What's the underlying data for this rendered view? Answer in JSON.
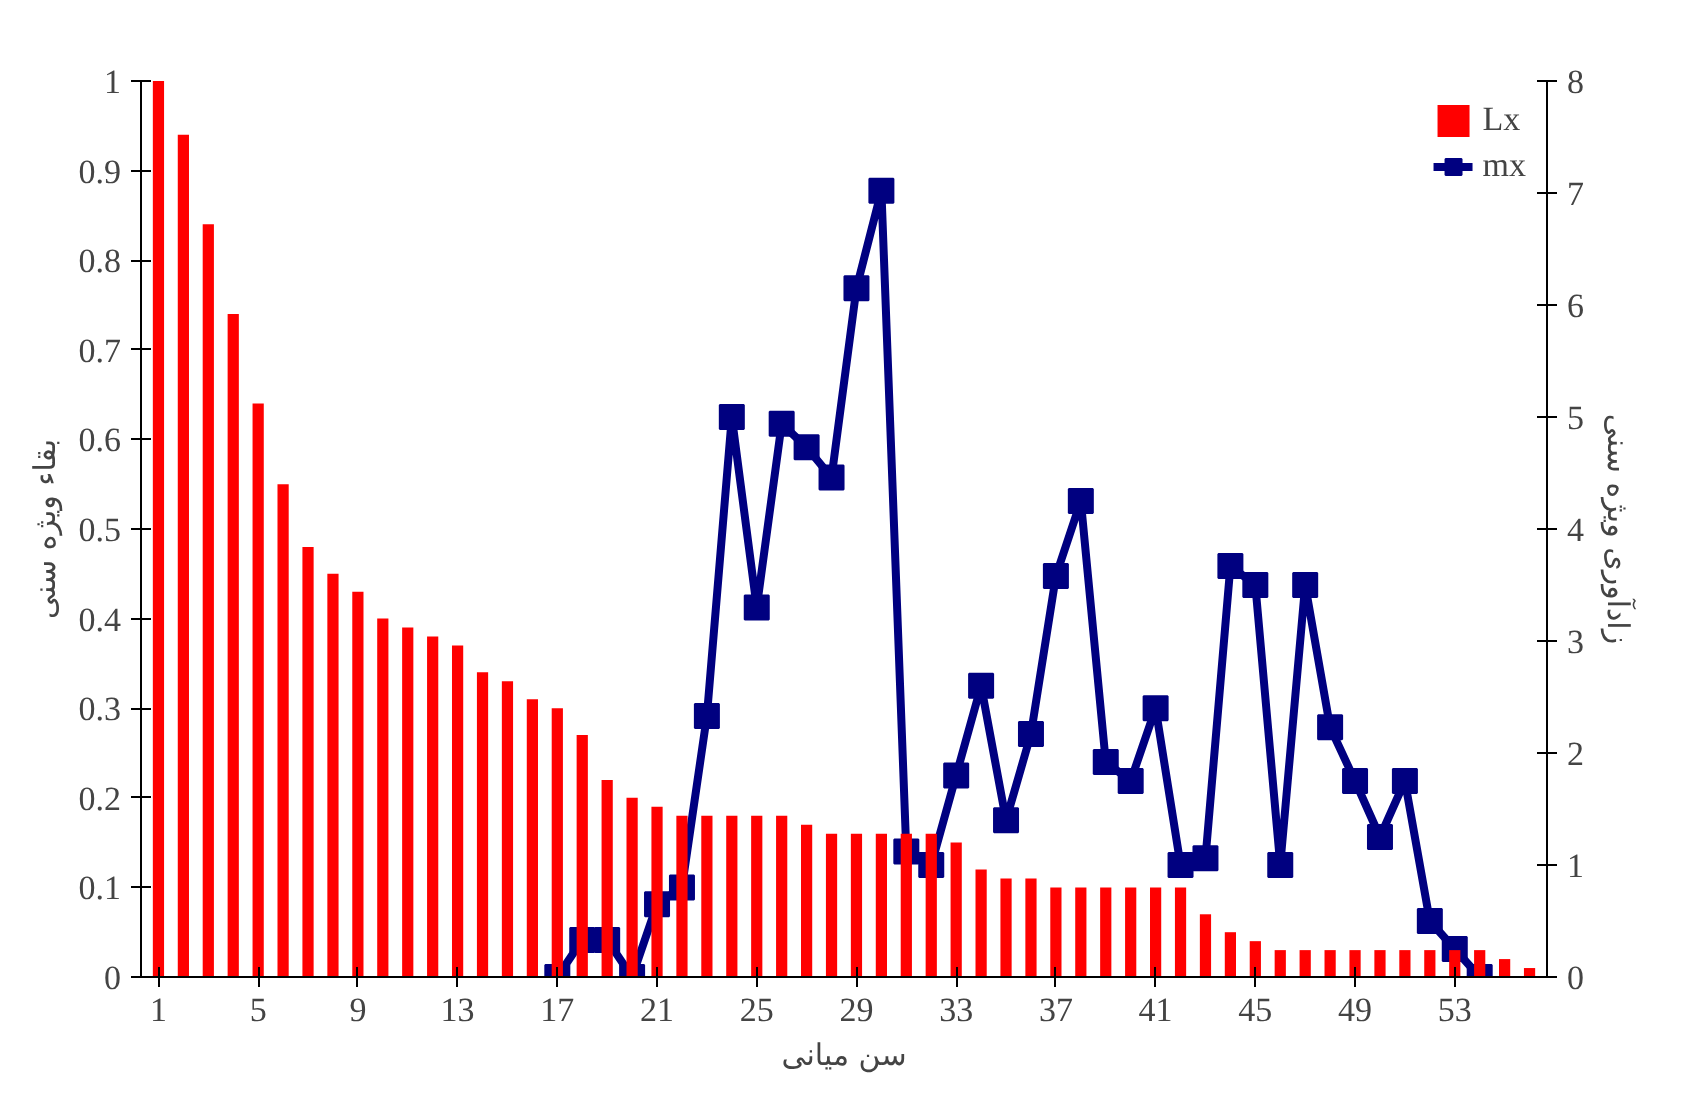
{
  "chart_data": {
    "type": "bar",
    "xlabel": "سن میانی",
    "ylabel": "بقاء ویژه سنی",
    "y2label": "زادآوری ویژه سنی",
    "categories": [
      "1",
      null,
      null,
      null,
      "5",
      null,
      null,
      null,
      "9",
      null,
      null,
      null,
      "13",
      null,
      null,
      null,
      "17",
      null,
      null,
      null,
      "21",
      null,
      null,
      null,
      "25",
      null,
      null,
      null,
      "29",
      null,
      null,
      null,
      "33",
      null,
      null,
      null,
      "37",
      null,
      null,
      null,
      "41",
      null,
      null,
      null,
      "45",
      null,
      null,
      null,
      "49",
      null,
      null,
      null,
      "53",
      null,
      null,
      null
    ],
    "series": [
      {
        "name": "Lx",
        "color": "#ff0000",
        "values": [
          1.0,
          0.94,
          0.84,
          0.74,
          0.64,
          0.55,
          0.48,
          0.45,
          0.43,
          0.4,
          0.39,
          0.38,
          0.37,
          0.34,
          0.33,
          0.31,
          0.3,
          0.27,
          0.22,
          0.2,
          0.19,
          0.18,
          0.18,
          0.18,
          0.18,
          0.18,
          0.17,
          0.16,
          0.16,
          0.16,
          0.16,
          0.16,
          0.15,
          0.12,
          0.11,
          0.11,
          0.1,
          0.1,
          0.1,
          0.1,
          0.1,
          0.1,
          0.07,
          0.05,
          0.04,
          0.03,
          0.03,
          0.03,
          0.03,
          0.03,
          0.03,
          0.03,
          0.03,
          0.03,
          0.02,
          0.01
        ]
      },
      {
        "name": "mx",
        "type": "line",
        "axis": "y2",
        "color": "#000080",
        "marker": "square",
        "values": [
          null,
          null,
          null,
          null,
          null,
          null,
          null,
          null,
          null,
          null,
          null,
          null,
          null,
          null,
          null,
          null,
          0,
          0.33,
          0.33,
          0,
          0.65,
          0.8,
          2.33,
          5.0,
          3.3,
          4.94,
          4.73,
          4.46,
          6.15,
          7.02,
          1.12,
          1.0,
          1.8,
          2.6,
          1.4,
          2.17,
          3.58,
          4.25,
          1.92,
          1.75,
          2.4,
          1.0,
          1.06,
          3.67,
          3.5,
          1.0,
          3.5,
          2.23,
          1.75,
          1.25,
          1.75,
          0.5,
          0.25,
          0,
          null,
          null
        ]
      }
    ],
    "ylim": [
      0,
      1
    ],
    "yticks": [
      0,
      0.1,
      0.2,
      0.3,
      0.4,
      0.5,
      0.6,
      0.7,
      0.8,
      0.9,
      1
    ],
    "y2lim": [
      0,
      8
    ],
    "y2ticks": [
      0,
      1,
      2,
      3,
      4,
      5,
      6,
      7,
      8
    ],
    "grid": false,
    "legend": "top right"
  }
}
